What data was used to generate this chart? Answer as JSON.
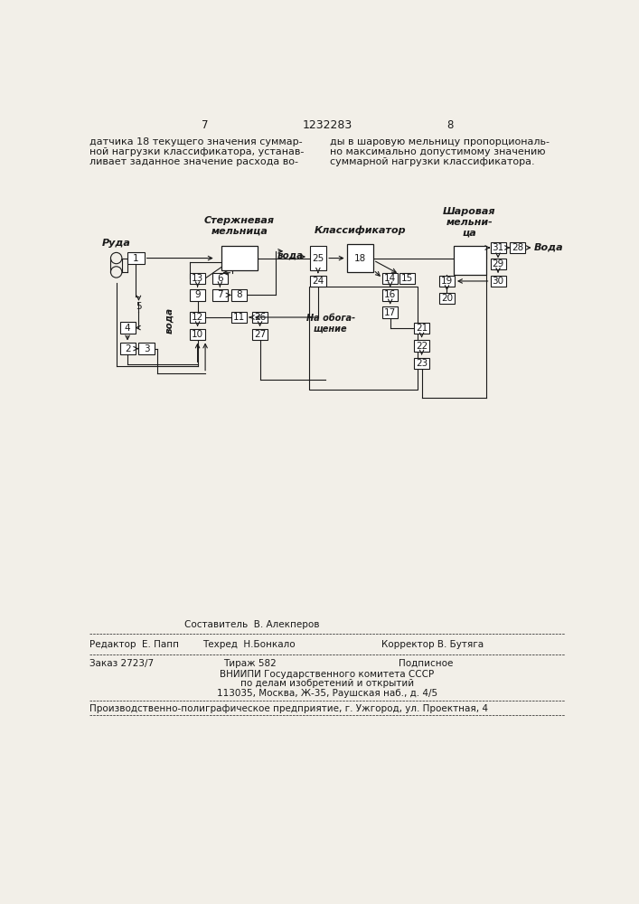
{
  "bg": "#f2efe8",
  "fc": "#1a1a1a",
  "page_left": "7",
  "page_center": "1232283",
  "page_right": "8",
  "text_col1_line1": "датчика 18 текущего значения суммар-",
  "text_col1_line2": "ной нагрузки классификатора, устанав-",
  "text_col1_line3": "ливает заданное значение расхода во-",
  "text_col2_line1": "ды в шаровую мельницу пропорциональ-",
  "text_col2_line2": "но максимально допустимому значению",
  "text_col2_line3": "суммарной нагрузки классификатора.",
  "lbl_ruda": "Руда",
  "lbl_rod": "Стержневая\nмельница",
  "lbl_cls": "Классификатор",
  "lbl_ball": "Шаровая\nмельни-\nца",
  "lbl_voda_rod": "вода",
  "lbl_voda_ball": "Вода",
  "lbl_voda_left": "вода",
  "lbl_na_oboga": "На обога-\nщение",
  "footer_composer": "Составитель  В. Алекперов",
  "footer_editor": "Редактор  Е. Папп",
  "footer_techred": "Техред  Н.Бонкало",
  "footer_corrector": "Корректор В. Бутяга",
  "footer_order": "Заказ 2723/7",
  "footer_tirazh": "Тираж 582",
  "footer_podp": "Подписное",
  "footer_v1": "ВНИИПИ Государственного комитета СССР",
  "footer_v2": "по делам изобретений и открытий",
  "footer_v3": "113035, Москва, Ж-35, Раушская наб., д. 4/5",
  "footer_prod": "Производственно-полиграфическое предприятие, г. Ужгород, ул. Проектная, 4"
}
